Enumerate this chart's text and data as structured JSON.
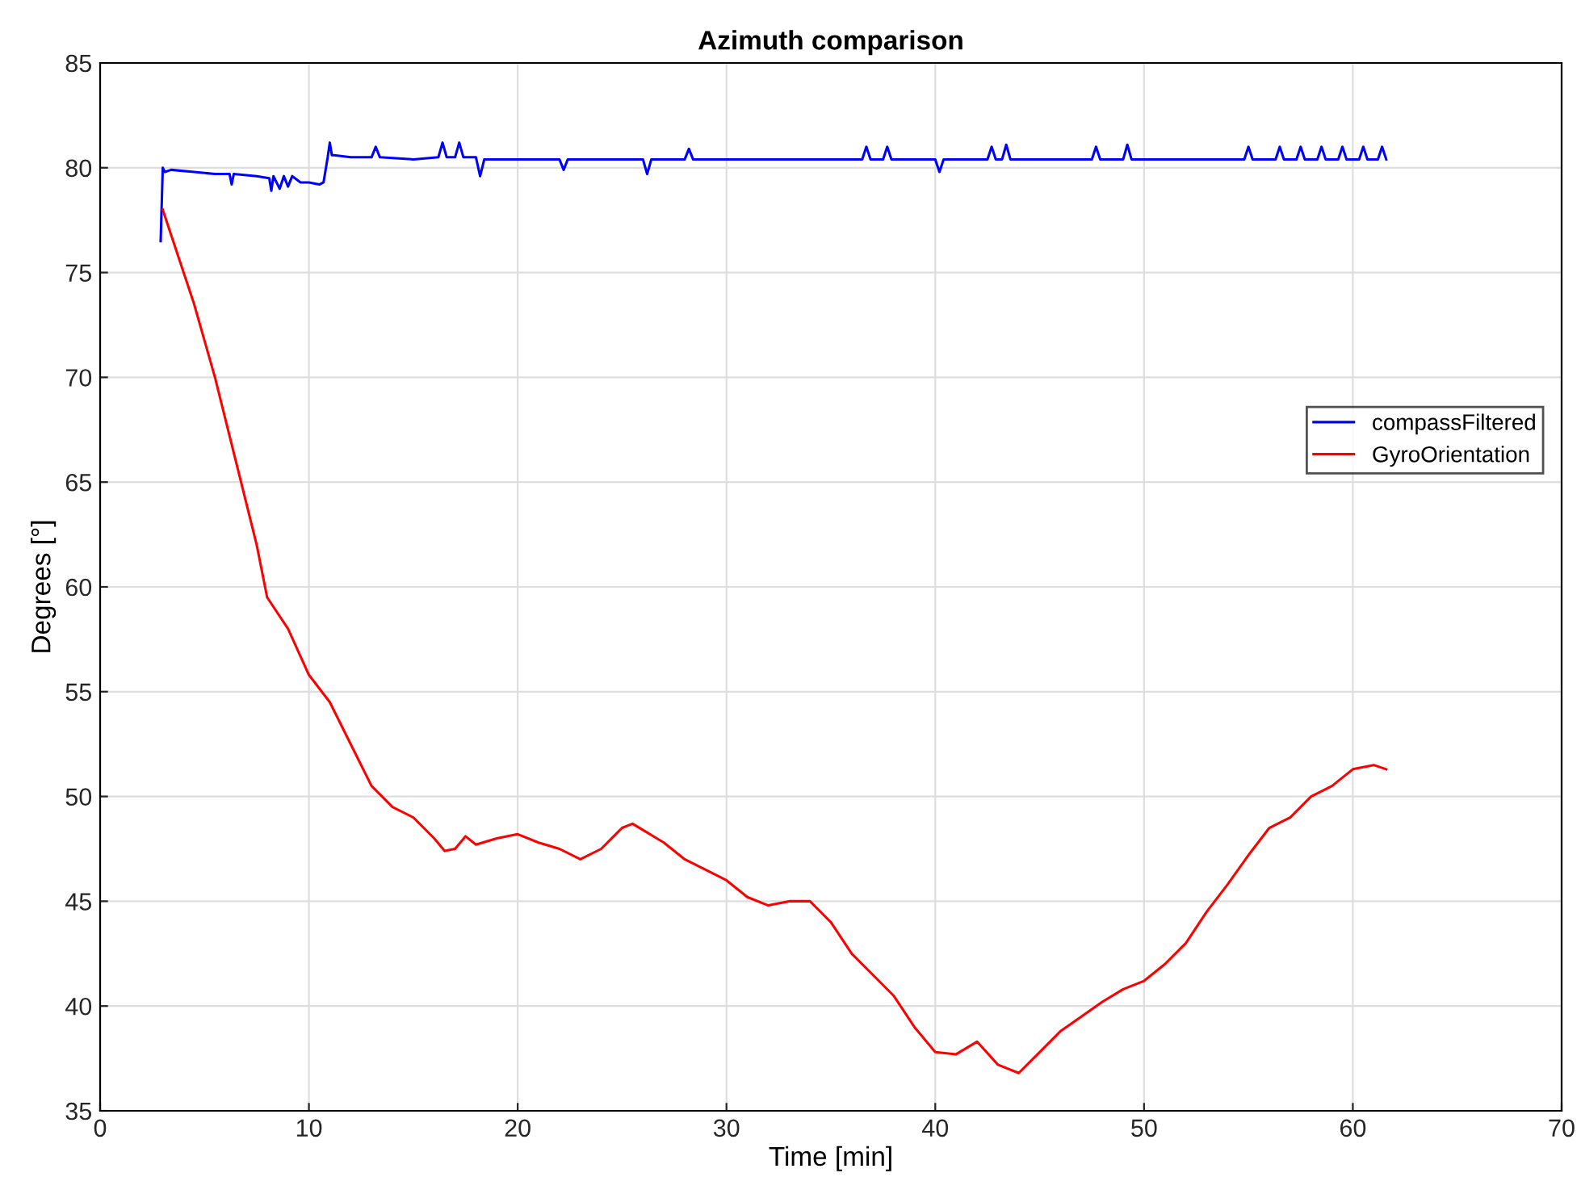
{
  "chart_data": {
    "type": "line",
    "title": "Azimuth comparison",
    "xlabel": "Time [min]",
    "ylabel": "Degrees [°]",
    "xlim": [
      0,
      70
    ],
    "xticks": [
      0,
      10,
      20,
      30,
      40,
      50,
      60,
      70
    ],
    "ylim": [
      35,
      85
    ],
    "yticks": [
      35,
      40,
      45,
      50,
      55,
      60,
      65,
      70,
      75,
      80,
      85
    ],
    "grid": true,
    "legend": "right",
    "marker": "none",
    "line_style": "solid",
    "series": [
      {
        "name": "compassFiltered",
        "color": "#0000ff",
        "x": [
          2.9,
          3.0,
          3.1,
          3.4,
          4.5,
          5.5,
          6.2,
          6.3,
          6.4,
          7.5,
          8.1,
          8.2,
          8.3,
          8.6,
          8.8,
          9.0,
          9.2,
          9.6,
          10.0,
          10.5,
          10.7,
          10.9,
          11.0,
          11.1,
          11.2,
          12.0,
          13.0,
          13.2,
          13.4,
          15.0,
          16.2,
          16.4,
          16.6,
          17.0,
          17.2,
          17.4,
          18.0,
          18.2,
          18.4,
          20,
          22,
          22.2,
          22.4,
          25,
          26.0,
          26.2,
          26.4,
          28,
          28.2,
          28.4,
          30,
          34,
          36.5,
          36.7,
          36.9,
          37.5,
          37.7,
          37.9,
          40,
          40.2,
          40.4,
          42.5,
          42.7,
          42.9,
          43.2,
          43.4,
          43.6,
          45,
          47.5,
          47.7,
          47.9,
          49,
          49.2,
          49.4,
          52,
          54.8,
          55.0,
          55.2,
          56.3,
          56.5,
          56.7,
          57.3,
          57.5,
          57.7,
          58.3,
          58.5,
          58.7,
          59.3,
          59.5,
          59.7,
          60.3,
          60.5,
          60.7,
          61.2,
          61.4,
          61.6
        ],
        "values": [
          76.5,
          80.0,
          79.8,
          79.9,
          79.8,
          79.7,
          79.7,
          79.2,
          79.7,
          79.6,
          79.5,
          78.9,
          79.6,
          79.0,
          79.6,
          79.1,
          79.6,
          79.3,
          79.3,
          79.2,
          79.3,
          80.5,
          81.2,
          80.6,
          80.6,
          80.5,
          80.5,
          81.0,
          80.5,
          80.4,
          80.5,
          81.2,
          80.5,
          80.5,
          81.2,
          80.5,
          80.5,
          79.6,
          80.4,
          80.4,
          80.4,
          79.9,
          80.4,
          80.4,
          80.4,
          79.7,
          80.4,
          80.4,
          80.9,
          80.4,
          80.4,
          80.4,
          80.4,
          81.0,
          80.4,
          80.4,
          81.0,
          80.4,
          80.4,
          79.8,
          80.4,
          80.4,
          81.0,
          80.4,
          80.4,
          81.1,
          80.4,
          80.4,
          80.4,
          81.0,
          80.4,
          80.4,
          81.1,
          80.4,
          80.4,
          80.4,
          81.0,
          80.4,
          80.4,
          81.0,
          80.4,
          80.4,
          81.0,
          80.4,
          80.4,
          81.0,
          80.4,
          80.4,
          81.0,
          80.4,
          80.4,
          81.0,
          80.4,
          80.4,
          81.0,
          80.4
        ]
      },
      {
        "name": "GyroOrientation",
        "color": "#ff0000",
        "x": [
          3,
          3.5,
          4.5,
          5.5,
          6.5,
          7.5,
          8,
          9,
          10,
          11,
          12,
          13,
          14,
          15,
          16,
          16.5,
          17,
          17.5,
          18,
          19,
          20,
          21,
          22,
          23,
          24,
          25,
          25.5,
          26,
          27,
          28,
          29,
          30,
          31,
          32,
          33,
          34,
          35,
          36,
          37,
          38,
          39,
          40,
          41,
          42,
          43,
          44,
          45,
          46,
          47,
          48,
          49,
          50,
          51,
          52,
          53,
          54,
          55,
          56,
          57,
          58,
          59,
          60,
          61,
          61.6
        ],
        "values": [
          78,
          76.5,
          73.5,
          70,
          66,
          62,
          59.5,
          58,
          55.8,
          54.5,
          52.5,
          50.5,
          49.5,
          49.0,
          48.0,
          47.4,
          47.5,
          48.1,
          47.7,
          48,
          48.2,
          47.8,
          47.5,
          47.0,
          47.5,
          48.5,
          48.7,
          48.4,
          47.8,
          47.0,
          46.5,
          46.0,
          45.2,
          44.8,
          45.0,
          45.0,
          44.0,
          42.5,
          41.5,
          40.5,
          39.0,
          37.8,
          37.7,
          38.3,
          37.2,
          36.8,
          37.8,
          38.8,
          39.5,
          40.2,
          40.8,
          41.2,
          42.0,
          43.0,
          44.5,
          45.8,
          47.2,
          48.5,
          49.0,
          50.0,
          50.5,
          51.3,
          51.5,
          51.3
        ]
      }
    ]
  }
}
